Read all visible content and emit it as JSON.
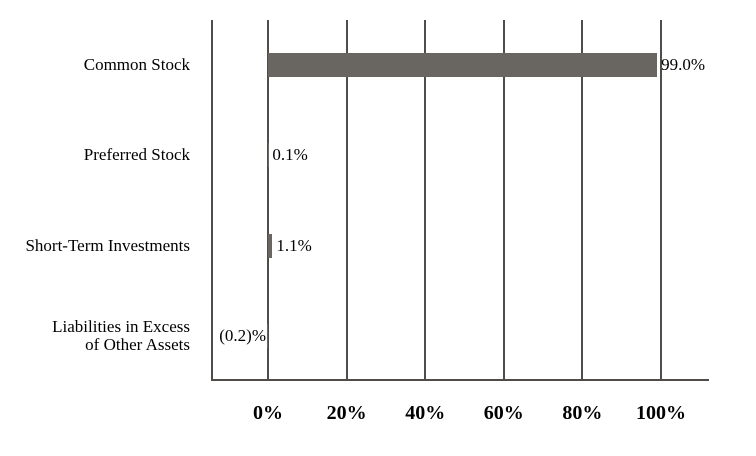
{
  "chart_data": {
    "type": "bar",
    "orientation": "horizontal",
    "title": "",
    "xlabel": "",
    "ylabel": "",
    "xlim": [
      0,
      100
    ],
    "grid": true,
    "legend": "none",
    "categories": [
      "Common Stock",
      "Preferred Stock",
      "Short-Term Investments",
      "Liabilities in Excess\nof Other Assets"
    ],
    "values": [
      99.0,
      0.1,
      1.1,
      -0.2
    ],
    "value_labels": [
      "99.0%",
      "0.1%",
      "1.1%",
      "(0.2)%"
    ],
    "x_tick_values": [
      0,
      20,
      40,
      60,
      80,
      100
    ],
    "x_tick_labels": [
      "0%",
      "20%",
      "40%",
      "60%",
      "80%",
      "100%"
    ],
    "colors": {
      "bar": "#696662",
      "line": "#4f4c4a",
      "text": "#000000",
      "background": "#ffffff"
    }
  }
}
